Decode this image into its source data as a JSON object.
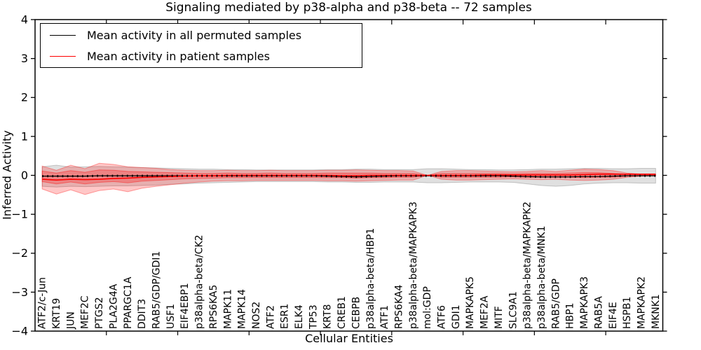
{
  "chart_data": {
    "type": "line",
    "title": "Signaling mediated by p38-alpha and p38-beta -- 72 samples",
    "xlabel": "Cellular Entities",
    "ylabel": "Inferred Activity",
    "ylim": [
      -4,
      4
    ],
    "ytick_labels": [
      "4",
      "3",
      "2",
      "1",
      "0",
      "−1",
      "−2",
      "−3",
      "−4"
    ],
    "legend_position": "upper left",
    "grid": false,
    "entities": [
      "ATF2/c-Jun",
      "KRT19",
      "JUN",
      "MEF2C",
      "PTGS2",
      "PLA2G4A",
      "PPARGC1A",
      "DDIT3",
      "RAB5/GDP/GDI1",
      "USF1",
      "EIF4EBP1",
      "p38alpha-beta/CK2",
      "RPS6KA5",
      "MAPK11",
      "MAPK14",
      "NOS2",
      "ATF2",
      "ESR1",
      "ELK4",
      "TP53",
      "KRT8",
      "CREB1",
      "CEBPB",
      "p38alpha-beta/HBP1",
      "ATF1",
      "RPS6KA4",
      "p38alpha-beta/MAPKAPK3",
      "mol:GDP",
      "ATF6",
      "GDI1",
      "MAPKAPK5",
      "MEF2A",
      "MITF",
      "SLC9A1",
      "p38alpha-beta/MAPKAPK2",
      "p38alpha-beta/MNK1",
      "RAB5/GDP",
      "HBP1",
      "MAPKAPK3",
      "RAB5A",
      "EIF4E",
      "HSPB1",
      "MAPKAPK2",
      "MKNK1"
    ],
    "series": [
      {
        "name": "Mean activity in all permuted samples",
        "color": "#000000",
        "values": [
          -0.02,
          -0.02,
          -0.02,
          -0.02,
          -0.01,
          -0.01,
          -0.01,
          -0.01,
          -0.01,
          -0.01,
          -0.01,
          -0.01,
          -0.01,
          -0.01,
          -0.01,
          -0.01,
          -0.01,
          -0.01,
          -0.01,
          -0.01,
          -0.02,
          -0.03,
          -0.04,
          -0.03,
          -0.02,
          -0.01,
          -0.01,
          -0.01,
          -0.01,
          -0.01,
          -0.01,
          -0.01,
          -0.01,
          -0.02,
          -0.03,
          -0.04,
          -0.04,
          -0.04,
          -0.03,
          -0.03,
          -0.02,
          -0.01,
          -0.01,
          -0.01
        ]
      },
      {
        "name": "Mean activity in patient samples",
        "color": "#ff0000",
        "values": [
          -0.1,
          -0.12,
          -0.1,
          -0.11,
          -0.1,
          -0.08,
          -0.07,
          -0.05,
          -0.04,
          -0.03,
          -0.02,
          -0.01,
          -0.01,
          0.0,
          0.0,
          0.0,
          0.0,
          0.0,
          0.0,
          0.0,
          0.0,
          -0.01,
          -0.01,
          0.0,
          0.0,
          0.0,
          0.0,
          0.0,
          0.0,
          0.0,
          0.0,
          0.01,
          0.01,
          0.01,
          0.01,
          0.01,
          0.01,
          0.01,
          0.02,
          0.03,
          0.03,
          0.03,
          0.03,
          0.03
        ]
      }
    ],
    "bands": [
      {
        "name": "permuted-samples-std-band",
        "color": "#000000",
        "opacity": 0.12,
        "hi": [
          0.22,
          0.26,
          0.21,
          0.22,
          0.23,
          0.22,
          0.21,
          0.2,
          0.19,
          0.18,
          0.17,
          0.16,
          0.16,
          0.15,
          0.15,
          0.14,
          0.14,
          0.14,
          0.14,
          0.14,
          0.15,
          0.15,
          0.16,
          0.16,
          0.15,
          0.15,
          0.15,
          0.17,
          0.17,
          0.16,
          0.15,
          0.15,
          0.14,
          0.14,
          0.15,
          0.16,
          0.16,
          0.17,
          0.18,
          0.18,
          0.17,
          0.17,
          0.18,
          0.18
        ],
        "lo": [
          -0.28,
          -0.3,
          -0.28,
          -0.29,
          -0.28,
          -0.27,
          -0.27,
          -0.26,
          -0.25,
          -0.23,
          -0.22,
          -0.2,
          -0.19,
          -0.18,
          -0.17,
          -0.16,
          -0.16,
          -0.16,
          -0.16,
          -0.16,
          -0.17,
          -0.17,
          -0.18,
          -0.18,
          -0.17,
          -0.17,
          -0.17,
          -0.19,
          -0.19,
          -0.18,
          -0.17,
          -0.17,
          -0.17,
          -0.18,
          -0.22,
          -0.26,
          -0.28,
          -0.26,
          -0.22,
          -0.2,
          -0.19,
          -0.19,
          -0.2,
          -0.2
        ]
      },
      {
        "name": "patient-samples-std-band",
        "color": "#ff0000",
        "opacity": 0.22,
        "hi": [
          0.24,
          0.13,
          0.26,
          0.17,
          0.31,
          0.28,
          0.22,
          0.2,
          0.18,
          0.15,
          0.13,
          0.12,
          0.12,
          0.13,
          0.12,
          0.12,
          0.13,
          0.12,
          0.12,
          0.12,
          0.13,
          0.13,
          0.14,
          0.13,
          0.12,
          0.12,
          0.11,
          0.0,
          0.1,
          0.12,
          0.12,
          0.11,
          0.1,
          0.09,
          0.1,
          0.12,
          0.1,
          0.13,
          0.16,
          0.15,
          0.12,
          0.06,
          0.03,
          0.03
        ],
        "lo": [
          -0.35,
          -0.48,
          -0.37,
          -0.49,
          -0.39,
          -0.35,
          -0.42,
          -0.33,
          -0.28,
          -0.24,
          -0.2,
          -0.17,
          -0.15,
          -0.14,
          -0.14,
          -0.13,
          -0.13,
          -0.13,
          -0.13,
          -0.13,
          -0.14,
          -0.14,
          -0.15,
          -0.14,
          -0.13,
          -0.12,
          -0.12,
          0.0,
          -0.1,
          -0.12,
          -0.12,
          -0.11,
          -0.1,
          -0.09,
          -0.1,
          -0.11,
          -0.1,
          -0.12,
          -0.13,
          -0.12,
          -0.1,
          -0.05,
          -0.02,
          -0.01
        ]
      },
      {
        "name": "patient-samples-inner-band",
        "color": "#ff0000",
        "opacity": 0.25,
        "hi": [
          0.11,
          0.06,
          0.12,
          0.08,
          0.14,
          0.13,
          0.1,
          0.09,
          0.08,
          0.07,
          0.06,
          0.05,
          0.05,
          0.06,
          0.05,
          0.05,
          0.06,
          0.05,
          0.05,
          0.05,
          0.06,
          0.06,
          0.06,
          0.06,
          0.05,
          0.05,
          0.05,
          0.0,
          0.05,
          0.05,
          0.05,
          0.05,
          0.05,
          0.04,
          0.05,
          0.05,
          0.05,
          0.06,
          0.07,
          0.07,
          0.05,
          0.03,
          0.01,
          0.01
        ],
        "lo": [
          -0.16,
          -0.22,
          -0.17,
          -0.22,
          -0.18,
          -0.16,
          -0.19,
          -0.15,
          -0.13,
          -0.11,
          -0.09,
          -0.08,
          -0.07,
          -0.06,
          -0.06,
          -0.06,
          -0.06,
          -0.06,
          -0.06,
          -0.06,
          -0.06,
          -0.06,
          -0.07,
          -0.06,
          -0.06,
          -0.05,
          -0.05,
          0.0,
          -0.05,
          -0.05,
          -0.05,
          -0.05,
          -0.05,
          -0.04,
          -0.05,
          -0.05,
          -0.05,
          -0.05,
          -0.06,
          -0.05,
          -0.05,
          -0.02,
          -0.01,
          0.0
        ]
      }
    ]
  }
}
